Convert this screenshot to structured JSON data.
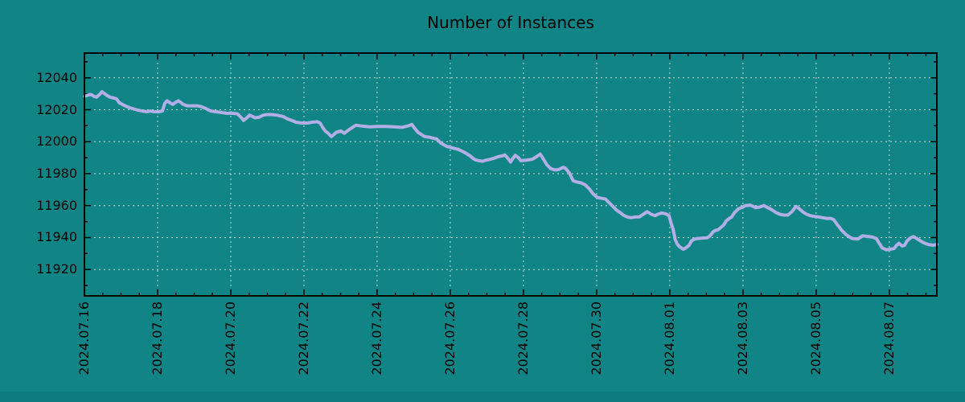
{
  "colors": {
    "background": "#118586",
    "bottom_bar": "#0d7c80",
    "line": "#b2aee6",
    "grid": "#ccd8d5",
    "axis": "#000000",
    "text": "#000000"
  },
  "chart_data": {
    "type": "line",
    "title": "Number of Instances",
    "xlabel": "",
    "ylabel": "",
    "legend": "none",
    "grid": "dashed major gridlines on both axes",
    "x_tick_labels": [
      "2024.07.16",
      "2024.07.18",
      "2024.07.20",
      "2024.07.22",
      "2024.07.24",
      "2024.07.26",
      "2024.07.28",
      "2024.07.30",
      "2024.08.01",
      "2024.08.03",
      "2024.08.05",
      "2024.08.07"
    ],
    "x_tick_interval_days": 2,
    "x_minor_tick_days": 0.5,
    "x_range_days": [
      0,
      23.3
    ],
    "y_ticks": [
      11920,
      11940,
      11960,
      11980,
      12000,
      12020,
      12040
    ],
    "y_minor_tick": 10,
    "y_range": [
      11903.5,
      12055.5
    ],
    "series": [
      {
        "name": "Number of Instances",
        "color": "#b2aee6",
        "points_day_value": [
          [
            0.0,
            12028.4
          ],
          [
            0.11,
            12029.3
          ],
          [
            0.18,
            12029.6
          ],
          [
            0.26,
            12028.4
          ],
          [
            0.33,
            12027.9
          ],
          [
            0.4,
            12029.3
          ],
          [
            0.48,
            12031.3
          ],
          [
            0.55,
            12030.1
          ],
          [
            0.62,
            12028.9
          ],
          [
            0.7,
            12027.9
          ],
          [
            0.81,
            12027.3
          ],
          [
            0.88,
            12026.8
          ],
          [
            0.95,
            12024.5
          ],
          [
            1.03,
            12023.4
          ],
          [
            1.14,
            12022.2
          ],
          [
            1.25,
            12021.2
          ],
          [
            1.36,
            12020.4
          ],
          [
            1.47,
            12019.7
          ],
          [
            1.58,
            12019.2
          ],
          [
            1.69,
            12018.8
          ],
          [
            1.8,
            12019.2
          ],
          [
            1.91,
            12018.8
          ],
          [
            2.02,
            12018.7
          ],
          [
            2.13,
            12019.2
          ],
          [
            2.2,
            12024.2
          ],
          [
            2.26,
            12025.6
          ],
          [
            2.35,
            12024.2
          ],
          [
            2.42,
            12023.4
          ],
          [
            2.48,
            12024.5
          ],
          [
            2.57,
            12025.6
          ],
          [
            2.64,
            12024.5
          ],
          [
            2.7,
            12023.4
          ],
          [
            2.81,
            12022.5
          ],
          [
            2.92,
            12022.5
          ],
          [
            3.08,
            12022.5
          ],
          [
            3.19,
            12022.0
          ],
          [
            3.3,
            12021.0
          ],
          [
            3.45,
            12019.2
          ],
          [
            3.58,
            12018.8
          ],
          [
            3.74,
            12018.3
          ],
          [
            3.89,
            12017.8
          ],
          [
            4.02,
            12017.8
          ],
          [
            4.18,
            12017.5
          ],
          [
            4.29,
            12015.0
          ],
          [
            4.35,
            12013.3
          ],
          [
            4.44,
            12015.0
          ],
          [
            4.51,
            12016.6
          ],
          [
            4.57,
            12016.1
          ],
          [
            4.66,
            12015.0
          ],
          [
            4.77,
            12015.3
          ],
          [
            4.88,
            12016.6
          ],
          [
            4.99,
            12017.0
          ],
          [
            5.12,
            12017.0
          ],
          [
            5.27,
            12016.6
          ],
          [
            5.43,
            12015.8
          ],
          [
            5.56,
            12014.2
          ],
          [
            5.67,
            12013.3
          ],
          [
            5.78,
            12012.2
          ],
          [
            5.93,
            12011.7
          ],
          [
            6.09,
            12011.7
          ],
          [
            6.22,
            12012.2
          ],
          [
            6.37,
            12012.5
          ],
          [
            6.44,
            12011.7
          ],
          [
            6.53,
            12008.3
          ],
          [
            6.59,
            12006.6
          ],
          [
            6.66,
            12005.3
          ],
          [
            6.75,
            12003.2
          ],
          [
            6.88,
            12005.8
          ],
          [
            7.01,
            12006.8
          ],
          [
            7.1,
            12005.3
          ],
          [
            7.25,
            12007.8
          ],
          [
            7.38,
            12009.8
          ],
          [
            7.43,
            12010.3
          ],
          [
            7.58,
            12009.8
          ],
          [
            7.8,
            12009.3
          ],
          [
            8.02,
            12009.6
          ],
          [
            8.24,
            12009.6
          ],
          [
            8.46,
            12009.3
          ],
          [
            8.68,
            12009.0
          ],
          [
            8.86,
            12010.0
          ],
          [
            8.95,
            12010.8
          ],
          [
            9.03,
            12008.3
          ],
          [
            9.12,
            12005.8
          ],
          [
            9.3,
            12003.2
          ],
          [
            9.45,
            12002.7
          ],
          [
            9.63,
            12001.7
          ],
          [
            9.74,
            11999.2
          ],
          [
            9.89,
            11997.2
          ],
          [
            10.04,
            11996.2
          ],
          [
            10.22,
            11995.2
          ],
          [
            10.4,
            11993.2
          ],
          [
            10.55,
            11991.0
          ],
          [
            10.66,
            11988.9
          ],
          [
            10.77,
            11988.1
          ],
          [
            10.88,
            11987.8
          ],
          [
            10.99,
            11988.5
          ],
          [
            11.1,
            11989.0
          ],
          [
            11.21,
            11989.8
          ],
          [
            11.32,
            11990.7
          ],
          [
            11.43,
            11991.2
          ],
          [
            11.49,
            11991.8
          ],
          [
            11.58,
            11989.5
          ],
          [
            11.65,
            11987.3
          ],
          [
            11.71,
            11989.5
          ],
          [
            11.78,
            11991.5
          ],
          [
            11.87,
            11989.8
          ],
          [
            11.93,
            11988.1
          ],
          [
            12.09,
            11988.5
          ],
          [
            12.24,
            11989.0
          ],
          [
            12.35,
            11990.5
          ],
          [
            12.46,
            11992.3
          ],
          [
            12.55,
            11989.0
          ],
          [
            12.64,
            11985.6
          ],
          [
            12.75,
            11983.1
          ],
          [
            12.86,
            11982.3
          ],
          [
            12.97,
            11982.6
          ],
          [
            13.08,
            11984.0
          ],
          [
            13.14,
            11983.6
          ],
          [
            13.25,
            11980.6
          ],
          [
            13.36,
            11975.5
          ],
          [
            13.47,
            11974.7
          ],
          [
            13.58,
            11974.2
          ],
          [
            13.69,
            11973.0
          ],
          [
            13.8,
            11970.5
          ],
          [
            13.91,
            11967.2
          ],
          [
            14.02,
            11965.1
          ],
          [
            14.13,
            11964.6
          ],
          [
            14.24,
            11964.1
          ],
          [
            14.33,
            11962.1
          ],
          [
            14.44,
            11959.6
          ],
          [
            14.55,
            11957.1
          ],
          [
            14.66,
            11955.4
          ],
          [
            14.73,
            11954.1
          ],
          [
            14.84,
            11952.9
          ],
          [
            14.95,
            11952.4
          ],
          [
            15.05,
            11952.9
          ],
          [
            15.16,
            11952.9
          ],
          [
            15.27,
            11954.5
          ],
          [
            15.38,
            11956.2
          ],
          [
            15.49,
            11954.6
          ],
          [
            15.6,
            11953.7
          ],
          [
            15.67,
            11954.6
          ],
          [
            15.78,
            11955.4
          ],
          [
            15.89,
            11954.9
          ],
          [
            15.98,
            11953.7
          ],
          [
            16.0,
            11952.0
          ],
          [
            16.04,
            11948.7
          ],
          [
            16.09,
            11945.4
          ],
          [
            16.15,
            11938.6
          ],
          [
            16.2,
            11936.1
          ],
          [
            16.26,
            11934.4
          ],
          [
            16.37,
            11932.7
          ],
          [
            16.44,
            11933.6
          ],
          [
            16.53,
            11935.2
          ],
          [
            16.59,
            11937.8
          ],
          [
            16.66,
            11939.0
          ],
          [
            16.75,
            11939.4
          ],
          [
            16.88,
            11939.7
          ],
          [
            17.03,
            11939.9
          ],
          [
            17.1,
            11941.1
          ],
          [
            17.19,
            11943.7
          ],
          [
            17.25,
            11944.5
          ],
          [
            17.32,
            11944.8
          ],
          [
            17.47,
            11947.8
          ],
          [
            17.54,
            11950.4
          ],
          [
            17.63,
            11952.0
          ],
          [
            17.69,
            11952.9
          ],
          [
            17.76,
            11955.4
          ],
          [
            17.87,
            11957.9
          ],
          [
            17.96,
            11958.7
          ],
          [
            18.07,
            11960.0
          ],
          [
            18.2,
            11960.3
          ],
          [
            18.35,
            11958.7
          ],
          [
            18.46,
            11959.1
          ],
          [
            18.57,
            11960.0
          ],
          [
            18.68,
            11958.7
          ],
          [
            18.79,
            11957.4
          ],
          [
            18.9,
            11955.7
          ],
          [
            19.01,
            11954.6
          ],
          [
            19.12,
            11954.1
          ],
          [
            19.23,
            11954.1
          ],
          [
            19.34,
            11956.2
          ],
          [
            19.45,
            11959.5
          ],
          [
            19.52,
            11958.4
          ],
          [
            19.63,
            11956.2
          ],
          [
            19.74,
            11954.6
          ],
          [
            19.85,
            11953.7
          ],
          [
            19.96,
            11953.2
          ],
          [
            20.07,
            11952.9
          ],
          [
            20.18,
            11952.4
          ],
          [
            20.29,
            11952.0
          ],
          [
            20.4,
            11952.0
          ],
          [
            20.48,
            11951.2
          ],
          [
            20.59,
            11947.8
          ],
          [
            20.7,
            11944.5
          ],
          [
            20.81,
            11942.0
          ],
          [
            20.92,
            11940.3
          ],
          [
            20.99,
            11939.4
          ],
          [
            21.14,
            11939.1
          ],
          [
            21.27,
            11941.1
          ],
          [
            21.38,
            11940.8
          ],
          [
            21.54,
            11940.3
          ],
          [
            21.65,
            11939.4
          ],
          [
            21.71,
            11936.9
          ],
          [
            21.8,
            11933.6
          ],
          [
            21.91,
            11932.4
          ],
          [
            22.02,
            11932.7
          ],
          [
            22.13,
            11933.1
          ],
          [
            22.2,
            11935.2
          ],
          [
            22.26,
            11936.4
          ],
          [
            22.35,
            11934.7
          ],
          [
            22.42,
            11935.2
          ],
          [
            22.48,
            11937.8
          ],
          [
            22.57,
            11939.7
          ],
          [
            22.66,
            11940.6
          ],
          [
            22.75,
            11939.4
          ],
          [
            22.86,
            11937.8
          ],
          [
            22.97,
            11936.4
          ],
          [
            23.08,
            11935.6
          ],
          [
            23.19,
            11935.2
          ],
          [
            23.3,
            11935.6
          ]
        ]
      }
    ]
  }
}
